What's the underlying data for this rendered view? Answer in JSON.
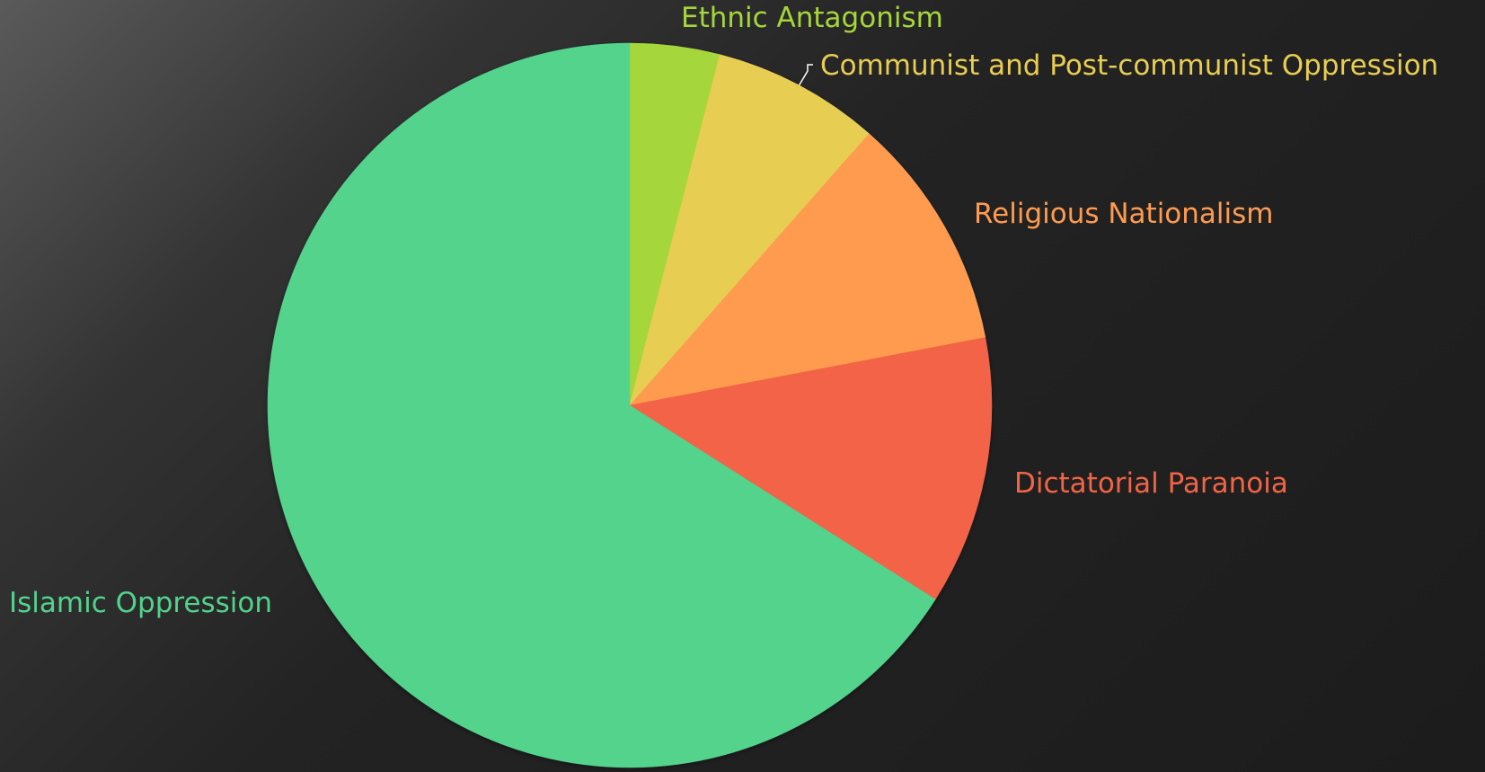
{
  "chart_data": {
    "type": "pie",
    "title": "",
    "start_angle_deg": 0,
    "direction": "clockwise",
    "slices": [
      {
        "label": "Ethnic Antagonism",
        "value": 4.0,
        "color": "#a5d63a"
      },
      {
        "label": "Communist and Post-communist Oppression",
        "value": 7.5,
        "color": "#e8cd52"
      },
      {
        "label": "Religious Nationalism",
        "value": 10.5,
        "color": "#ff9b50"
      },
      {
        "label": "Dictatorial Paranoia",
        "value": 12.0,
        "color": "#f26446"
      },
      {
        "label": "Islamic Oppression",
        "value": 66.0,
        "color": "#52d38c"
      }
    ],
    "legend": "none",
    "data_labels": "category names outside slices"
  }
}
